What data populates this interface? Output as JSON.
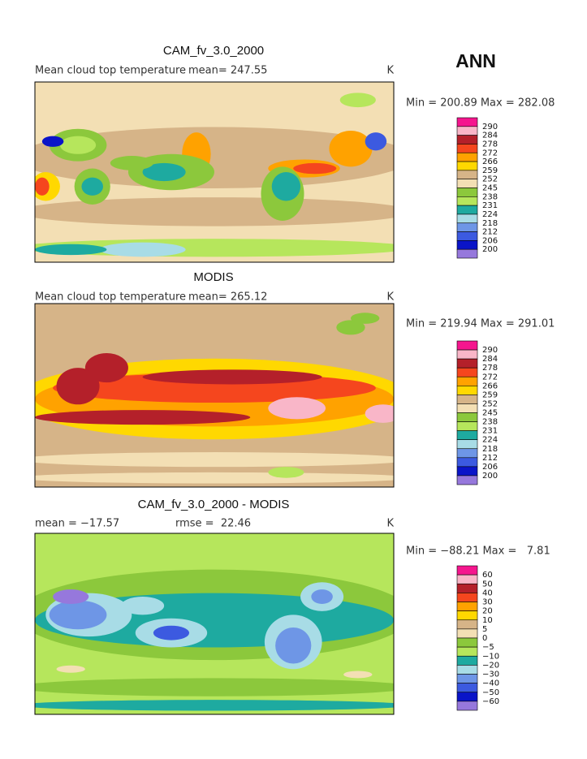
{
  "header": {
    "title": "ANN"
  },
  "panels": [
    {
      "title": "CAM_fv_3.0_2000",
      "left_label": "Mean cloud top temperature",
      "center_label": "mean= 247.55",
      "right_label": "K",
      "range_label": "Min = 200.89 Max = 282.08",
      "colorbar": {
        "labels": [
          "290",
          "284",
          "278",
          "272",
          "266",
          "259",
          "252",
          "245",
          "238",
          "231",
          "224",
          "218",
          "212",
          "206",
          "200"
        ]
      }
    },
    {
      "title": "MODIS",
      "left_label": "Mean cloud top temperature",
      "center_label": "mean= 265.12",
      "right_label": "K",
      "range_label": "Min = 219.94 Max = 291.01",
      "colorbar": {
        "labels": [
          "290",
          "284",
          "278",
          "272",
          "266",
          "259",
          "252",
          "245",
          "238",
          "231",
          "224",
          "218",
          "212",
          "206",
          "200"
        ]
      }
    },
    {
      "title": "CAM_fv_3.0_2000 - MODIS",
      "left_label": "mean = −17.57",
      "center_label": "rmse =  22.46",
      "right_label": "K",
      "range_label": "Min = −88.21 Max =   7.81",
      "colorbar": {
        "labels": [
          "60",
          "50",
          "40",
          "30",
          "20",
          "10",
          "5",
          "0",
          "−5",
          "−10",
          "−20",
          "−30",
          "−40",
          "−50",
          "−60"
        ]
      }
    }
  ],
  "colorbar_colors": [
    "#f5168e",
    "#f9b6c8",
    "#b4202a",
    "#f5461e",
    "#ffa200",
    "#ffd800",
    "#d6b488",
    "#f3dfb4",
    "#8cc83c",
    "#b6e65c",
    "#1eaaa0",
    "#a8dce6",
    "#6e96e6",
    "#3c5ae0",
    "#0a14c8",
    "#9678dc"
  ]
}
